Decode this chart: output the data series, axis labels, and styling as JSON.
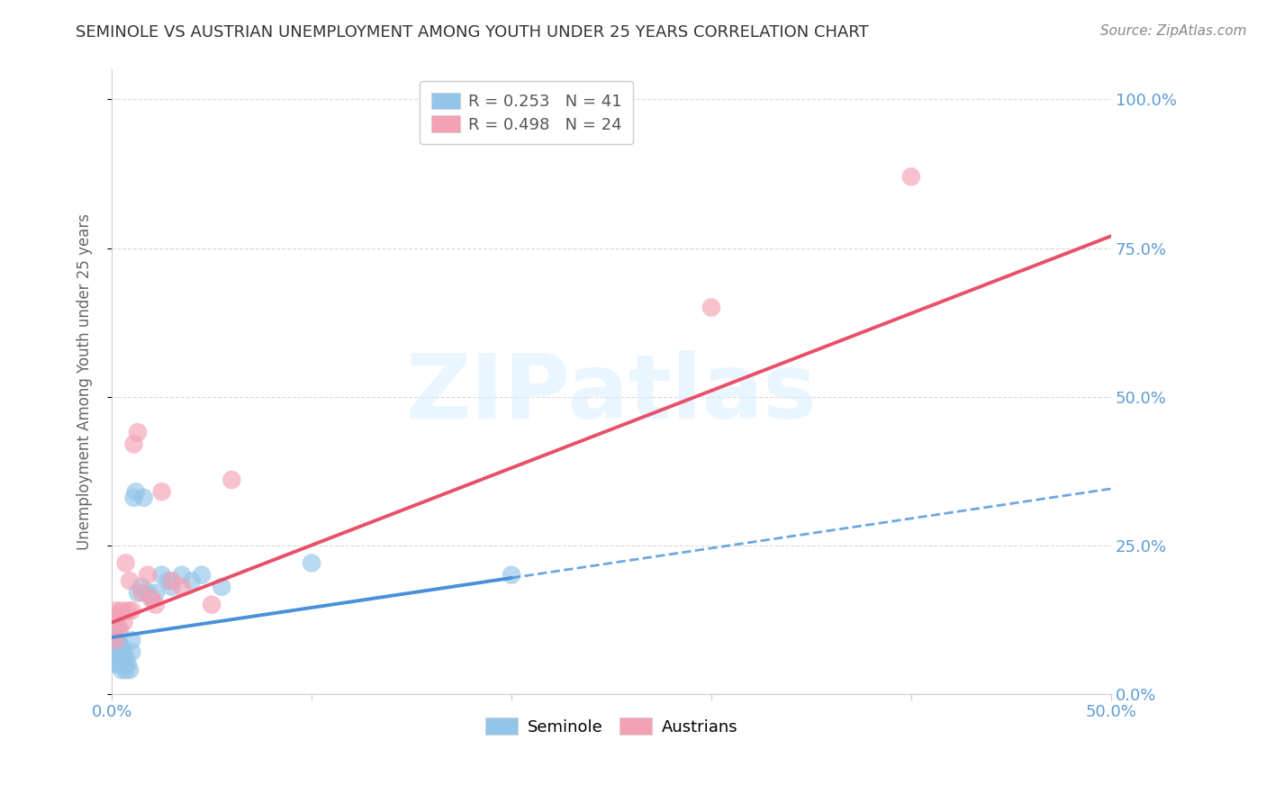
{
  "title": "SEMINOLE VS AUSTRIAN UNEMPLOYMENT AMONG YOUTH UNDER 25 YEARS CORRELATION CHART",
  "source": "Source: ZipAtlas.com",
  "ylabel": "Unemployment Among Youth under 25 years",
  "watermark": "ZIPatlas",
  "xlim": [
    0.0,
    0.5
  ],
  "ylim": [
    0.0,
    1.05
  ],
  "xticks": [
    0.0,
    0.5
  ],
  "xticklabels": [
    "0.0%",
    "50.0%"
  ],
  "yticks": [
    0.0,
    0.25,
    0.5,
    0.75,
    1.0
  ],
  "yticklabels": [
    "0.0%",
    "25.0%",
    "50.0%",
    "75.0%",
    "100.0%"
  ],
  "seminole_color": "#92C5E8",
  "austrians_color": "#F4A0B5",
  "seminole_line_color": "#4A90D9",
  "austrians_line_color": "#E8506A",
  "R_seminole": 0.253,
  "N_seminole": 41,
  "R_austrians": 0.498,
  "N_austrians": 24,
  "seminole_x": [
    0.001,
    0.001,
    0.001,
    0.002,
    0.002,
    0.002,
    0.002,
    0.003,
    0.003,
    0.003,
    0.003,
    0.004,
    0.004,
    0.005,
    0.005,
    0.005,
    0.006,
    0.006,
    0.007,
    0.007,
    0.008,
    0.009,
    0.01,
    0.01,
    0.011,
    0.012,
    0.013,
    0.015,
    0.016,
    0.018,
    0.02,
    0.022,
    0.025,
    0.028,
    0.03,
    0.035,
    0.04,
    0.045,
    0.055,
    0.1,
    0.2
  ],
  "seminole_y": [
    0.05,
    0.07,
    0.09,
    0.06,
    0.08,
    0.1,
    0.12,
    0.05,
    0.07,
    0.09,
    0.11,
    0.06,
    0.08,
    0.04,
    0.06,
    0.08,
    0.05,
    0.07,
    0.04,
    0.06,
    0.05,
    0.04,
    0.07,
    0.09,
    0.33,
    0.34,
    0.17,
    0.18,
    0.33,
    0.17,
    0.16,
    0.17,
    0.2,
    0.19,
    0.18,
    0.2,
    0.19,
    0.2,
    0.18,
    0.22,
    0.2
  ],
  "austrians_x": [
    0.001,
    0.002,
    0.002,
    0.003,
    0.004,
    0.005,
    0.006,
    0.007,
    0.008,
    0.009,
    0.01,
    0.011,
    0.013,
    0.015,
    0.018,
    0.02,
    0.022,
    0.025,
    0.03,
    0.035,
    0.05,
    0.06,
    0.3,
    0.4
  ],
  "austrians_y": [
    0.1,
    0.09,
    0.14,
    0.13,
    0.11,
    0.14,
    0.12,
    0.22,
    0.14,
    0.19,
    0.14,
    0.42,
    0.44,
    0.17,
    0.2,
    0.16,
    0.15,
    0.34,
    0.19,
    0.18,
    0.15,
    0.36,
    0.65,
    0.87
  ],
  "seminole_line_x_start": 0.0,
  "seminole_line_x_solid_end": 0.2,
  "seminole_line_x_dash_end": 0.5,
  "seminole_line_y_at_0": 0.095,
  "seminole_line_y_at_020": 0.195,
  "seminole_line_y_at_050": 0.345,
  "austrians_line_x_start": 0.0,
  "austrians_line_x_end": 0.5,
  "austrians_line_y_at_0": 0.12,
  "austrians_line_y_at_050": 0.77,
  "background_color": "#FFFFFF",
  "grid_color": "#D0D0D0",
  "title_color": "#333333",
  "legend_box_color": "#FFFFFF",
  "legend_border_color": "#CCCCCC"
}
